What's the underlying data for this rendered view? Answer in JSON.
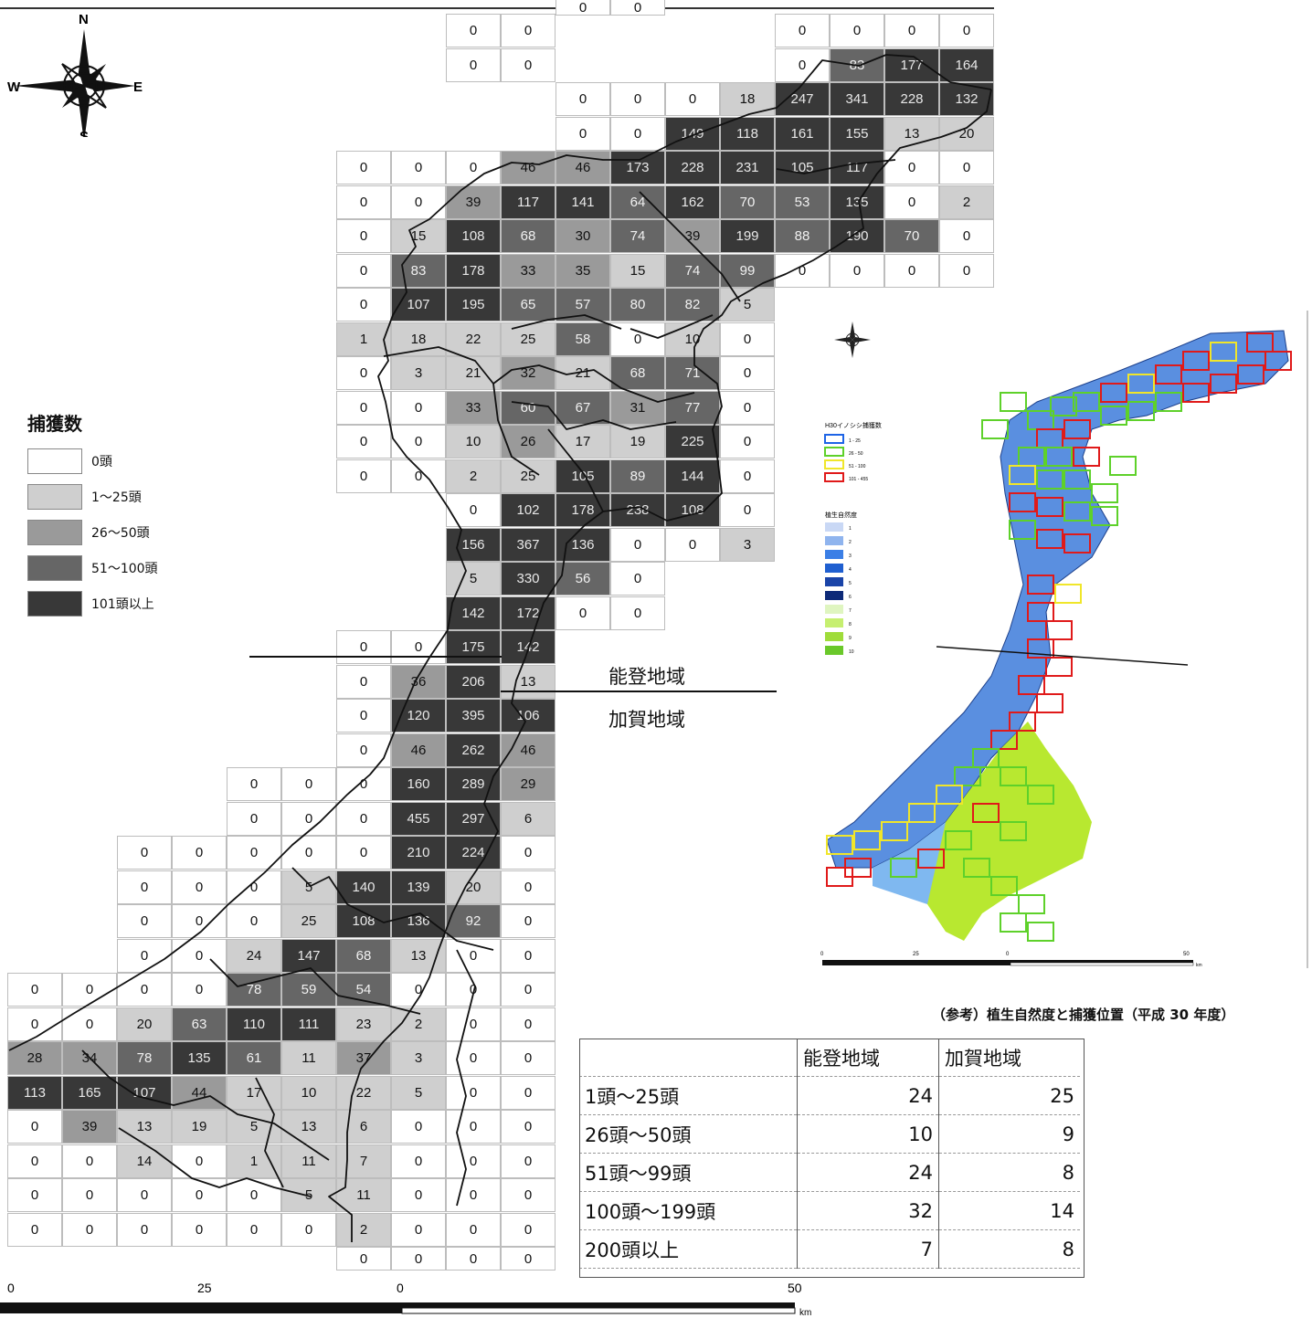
{
  "compass": {
    "n": "N",
    "s": "S",
    "e": "E",
    "w": "W"
  },
  "legend": {
    "title": "捕獲数",
    "items": [
      {
        "label": "0頭",
        "color": "#ffffff"
      },
      {
        "label": "1〜25頭",
        "color": "#cfcfcf"
      },
      {
        "label": "26〜50頭",
        "color": "#9a9a9a"
      },
      {
        "label": "51〜100頭",
        "color": "#666666"
      },
      {
        "label": "101頭以上",
        "color": "#383838"
      }
    ]
  },
  "regions": {
    "noto": "能登地域",
    "kaga": "加賀地域"
  },
  "grid_rows": [
    {
      "row": 0,
      "col": 8,
      "values": [
        "0",
        "0"
      ]
    },
    {
      "row": 0,
      "col": 14,
      "values": [
        "0",
        "0",
        "0",
        "0"
      ]
    },
    {
      "row": 1,
      "col": 8,
      "values": [
        "0",
        "0"
      ]
    },
    {
      "row": 1,
      "col": 14,
      "values": [
        "0",
        "83",
        "177",
        "164"
      ]
    },
    {
      "row": 2,
      "col": 10,
      "values": [
        "0",
        "0",
        "0",
        "18",
        "247",
        "341",
        "228",
        "132"
      ]
    },
    {
      "row": 3,
      "col": 10,
      "values": [
        "0",
        "0",
        "149",
        "118",
        "161",
        "155",
        "13",
        "20"
      ]
    },
    {
      "row": 4,
      "col": 6,
      "values": [
        "0",
        "0",
        "0",
        "46",
        "46",
        "173",
        "228",
        "231",
        "105",
        "117",
        "0",
        "0"
      ]
    },
    {
      "row": 5,
      "col": 6,
      "values": [
        "0",
        "0",
        "39",
        "117",
        "141",
        "64",
        "162",
        "70",
        "53",
        "135",
        "0",
        "2"
      ]
    },
    {
      "row": 6,
      "col": 6,
      "values": [
        "0",
        "15",
        "108",
        "68",
        "30",
        "74",
        "39",
        "199",
        "88",
        "190",
        "70",
        "0"
      ]
    },
    {
      "row": 7,
      "col": 6,
      "values": [
        "0",
        "83",
        "178",
        "33",
        "35",
        "15",
        "74",
        "99",
        "0",
        "0",
        "0",
        "0"
      ]
    },
    {
      "row": 8,
      "col": 6,
      "values": [
        "0",
        "107",
        "195",
        "65",
        "57",
        "80",
        "82",
        "5"
      ]
    },
    {
      "row": 9,
      "col": 6,
      "values": [
        "1",
        "18",
        "22",
        "25",
        "58",
        "0",
        "10",
        "0"
      ]
    },
    {
      "row": 10,
      "col": 6,
      "values": [
        "0",
        "3",
        "21",
        "32",
        "21",
        "68",
        "71",
        "0"
      ]
    },
    {
      "row": 11,
      "col": 6,
      "values": [
        "0",
        "0",
        "33",
        "60",
        "67",
        "31",
        "77",
        "0"
      ]
    },
    {
      "row": 12,
      "col": 6,
      "values": [
        "0",
        "0",
        "10",
        "26",
        "17",
        "19",
        "225",
        "0"
      ]
    },
    {
      "row": 13,
      "col": 6,
      "values": [
        "0",
        "0",
        "2",
        "25",
        "105",
        "89",
        "144",
        "0"
      ]
    },
    {
      "row": 14,
      "col": 8,
      "values": [
        "0",
        "102",
        "178",
        "238",
        "108",
        "0"
      ]
    },
    {
      "row": 15,
      "col": 8,
      "values": [
        "156",
        "367",
        "136",
        "0",
        "0",
        "3"
      ]
    },
    {
      "row": 16,
      "col": 8,
      "values": [
        "5",
        "330",
        "56",
        "0"
      ]
    },
    {
      "row": 17,
      "col": 8,
      "values": [
        "142",
        "172",
        "0",
        "0"
      ]
    },
    {
      "row": 18,
      "col": 6,
      "values": [
        "0",
        "0",
        "175",
        "142"
      ]
    },
    {
      "row": 19,
      "col": 6,
      "values": [
        "0",
        "36",
        "206",
        "13"
      ]
    },
    {
      "row": 20,
      "col": 6,
      "values": [
        "0",
        "120",
        "395",
        "106"
      ]
    },
    {
      "row": 21,
      "col": 6,
      "values": [
        "0",
        "46",
        "262",
        "46"
      ]
    },
    {
      "row": 22,
      "col": 4,
      "values": [
        "0",
        "0",
        "0",
        "160",
        "289",
        "29"
      ]
    },
    {
      "row": 23,
      "col": 4,
      "values": [
        "0",
        "0",
        "0",
        "455",
        "297",
        "6"
      ]
    },
    {
      "row": 24,
      "col": 2,
      "values": [
        "0",
        "0",
        "0",
        "0",
        "0",
        "210",
        "224",
        "0"
      ]
    },
    {
      "row": 25,
      "col": 2,
      "values": [
        "0",
        "0",
        "0",
        "5",
        "140",
        "139",
        "20",
        "0"
      ]
    },
    {
      "row": 26,
      "col": 2,
      "values": [
        "0",
        "0",
        "0",
        "25",
        "108",
        "136",
        "92",
        "0"
      ]
    },
    {
      "row": 27,
      "col": 2,
      "values": [
        "0",
        "0",
        "24",
        "147",
        "68",
        "13",
        "0",
        "0"
      ]
    },
    {
      "row": 28,
      "col": 0,
      "values": [
        "0",
        "0",
        "0",
        "0",
        "78",
        "59",
        "54",
        "0",
        "0",
        "0"
      ]
    },
    {
      "row": 29,
      "col": 0,
      "values": [
        "0",
        "0",
        "20",
        "63",
        "110",
        "111",
        "23",
        "2",
        "0",
        "0"
      ]
    },
    {
      "row": 30,
      "col": 0,
      "values": [
        "28",
        "34",
        "78",
        "135",
        "61",
        "11",
        "37",
        "3",
        "0",
        "0"
      ]
    },
    {
      "row": 31,
      "col": 0,
      "values": [
        "113",
        "165",
        "107",
        "44",
        "17",
        "10",
        "22",
        "5",
        "0",
        "0"
      ]
    },
    {
      "row": 32,
      "col": 0,
      "values": [
        "0",
        "39",
        "13",
        "19",
        "5",
        "13",
        "6",
        "0",
        "0",
        "0"
      ]
    },
    {
      "row": 33,
      "col": 0,
      "values": [
        "0",
        "0",
        "14",
        "0",
        "1",
        "11",
        "7",
        "0",
        "0",
        "0"
      ]
    },
    {
      "row": 34,
      "col": 0,
      "values": [
        "0",
        "0",
        "0",
        "0",
        "0",
        "5",
        "11",
        "0",
        "0",
        "0"
      ]
    },
    {
      "row": 35,
      "col": 0,
      "values": [
        "0",
        "0",
        "0",
        "0",
        "0",
        "0",
        "2",
        "0",
        "0",
        "0"
      ]
    },
    {
      "row": 36,
      "col": 6,
      "values": [
        "0",
        "0",
        "0",
        "0"
      ]
    }
  ],
  "partial_top": [
    "0",
    "0"
  ],
  "scale": {
    "ticks": [
      "0",
      "25",
      "0",
      "50"
    ],
    "unit": "km"
  },
  "inset": {
    "legend_title": "H30イノシシ捕獲数",
    "legend_items": [
      "1 - 25",
      "26 - 50",
      "51 - 100",
      "101 - 455"
    ],
    "legend_colors": [
      "#1e64e6",
      "#5ed12a",
      "#f0e62a",
      "#e01a1a"
    ],
    "veg_title": "植生自然度",
    "veg_levels": [
      "1",
      "2",
      "3",
      "4",
      "5",
      "6",
      "7",
      "8",
      "9",
      "10"
    ],
    "scale_ticks": [
      "0",
      "25",
      "0",
      "50"
    ],
    "scale_unit": "km"
  },
  "caption": "（参考）植生自然度と捕獲位置（平成 30 年度）",
  "stats": {
    "headers": [
      "",
      "能登地域",
      "加賀地域"
    ],
    "rows": [
      {
        "label": "1頭〜25頭",
        "noto": "24",
        "kaga": "25"
      },
      {
        "label": "26頭〜50頭",
        "noto": "10",
        "kaga": "9"
      },
      {
        "label": "51頭〜99頭",
        "noto": "24",
        "kaga": "8"
      },
      {
        "label": "100頭〜199頭",
        "noto": "32",
        "kaga": "14"
      },
      {
        "label": "200頭以上",
        "noto": "7",
        "kaga": "8"
      }
    ]
  }
}
